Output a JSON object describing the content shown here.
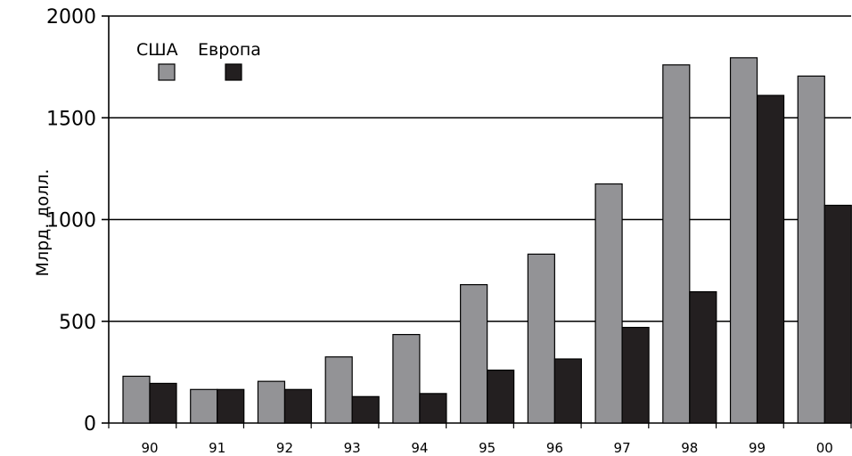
{
  "chart_data": {
    "type": "bar",
    "title": "",
    "xlabel": "",
    "ylabel": "Млрд. долл.",
    "ylim": [
      0,
      2000
    ],
    "yticks": [
      0,
      500,
      1000,
      1500,
      2000
    ],
    "grid": "horizontal",
    "legend": "top-left",
    "categories": [
      "90",
      "91",
      "92",
      "93",
      "94",
      "95",
      "96",
      "97",
      "98",
      "99",
      "00"
    ],
    "series": [
      {
        "name": "США",
        "color": "#939396",
        "values": [
          230,
          165,
          205,
          325,
          435,
          680,
          830,
          1175,
          1760,
          1795,
          1705
        ]
      },
      {
        "name": "Европа",
        "color": "#231f20",
        "values": [
          195,
          165,
          165,
          130,
          145,
          260,
          315,
          470,
          645,
          1610,
          1070
        ]
      }
    ]
  }
}
